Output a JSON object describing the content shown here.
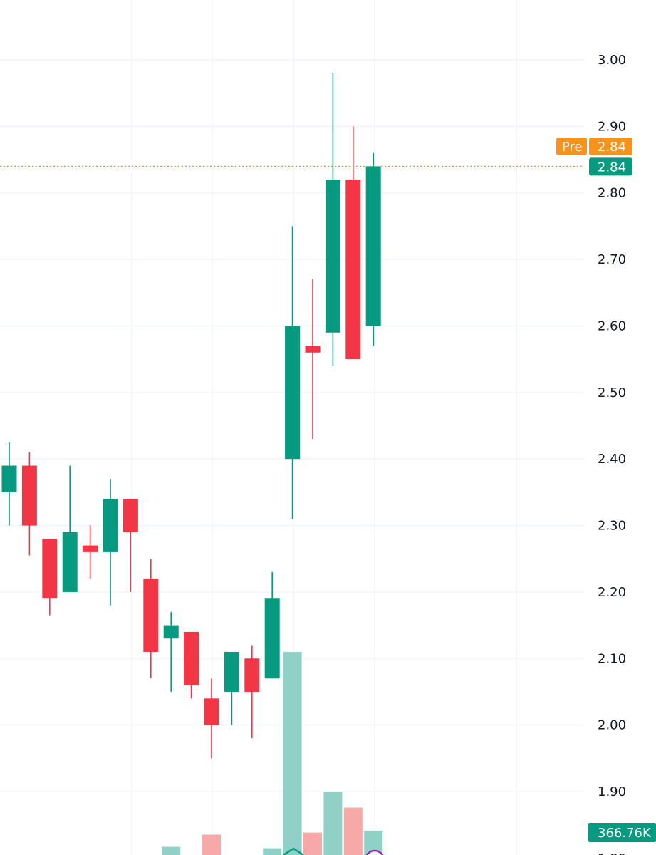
{
  "chart_data": {
    "type": "candlestick",
    "y_axis": {
      "ticks": [
        "3.00",
        "2.90",
        "2.80",
        "2.70",
        "2.60",
        "2.50",
        "2.40",
        "2.30",
        "2.20",
        "2.10",
        "2.00",
        "1.90"
      ],
      "range": [
        1.87,
        3.09
      ]
    },
    "candles": [
      {
        "open": 2.35,
        "high": 2.425,
        "low": 2.3,
        "close": 2.39
      },
      {
        "open": 2.39,
        "high": 2.41,
        "low": 2.255,
        "close": 2.3
      },
      {
        "open": 2.28,
        "high": 2.28,
        "low": 2.165,
        "close": 2.19
      },
      {
        "open": 2.2,
        "high": 2.39,
        "low": 2.2,
        "close": 2.29
      },
      {
        "open": 2.27,
        "high": 2.3,
        "low": 2.22,
        "close": 2.26
      },
      {
        "open": 2.26,
        "high": 2.37,
        "low": 2.18,
        "close": 2.34
      },
      {
        "open": 2.34,
        "high": 2.34,
        "low": 2.2,
        "close": 2.29
      },
      {
        "open": 2.22,
        "high": 2.25,
        "low": 2.07,
        "close": 2.11
      },
      {
        "open": 2.13,
        "high": 2.17,
        "low": 2.05,
        "close": 2.15
      },
      {
        "open": 2.14,
        "high": 2.14,
        "low": 2.04,
        "close": 2.06
      },
      {
        "open": 2.04,
        "high": 2.07,
        "low": 1.95,
        "close": 2.0
      },
      {
        "open": 2.05,
        "high": 2.11,
        "low": 2.0,
        "close": 2.11
      },
      {
        "open": 2.1,
        "high": 2.12,
        "low": 1.98,
        "close": 2.05
      },
      {
        "open": 2.07,
        "high": 2.23,
        "low": 2.07,
        "close": 2.19
      },
      {
        "open": 2.4,
        "high": 2.75,
        "low": 2.31,
        "close": 2.6
      },
      {
        "open": 2.57,
        "high": 2.67,
        "low": 2.43,
        "close": 2.56
      },
      {
        "open": 2.59,
        "high": 2.98,
        "low": 2.54,
        "close": 2.82
      },
      {
        "open": 2.82,
        "high": 2.9,
        "low": 2.55,
        "close": 2.55
      },
      {
        "open": 2.6,
        "high": 2.86,
        "low": 2.57,
        "close": 2.84
      }
    ],
    "volume": {
      "label": "366.76K",
      "bars": [
        {
          "index": 8,
          "value": 0.012,
          "up": true
        },
        {
          "index": 10,
          "value": 0.03,
          "up": false
        },
        {
          "index": 13,
          "value": 0.01,
          "up": true
        },
        {
          "index": 14,
          "value": 0.3,
          "up": true
        },
        {
          "index": 15,
          "value": 0.033,
          "up": false
        },
        {
          "index": 16,
          "value": 0.093,
          "up": true
        },
        {
          "index": 17,
          "value": 0.07,
          "up": false
        },
        {
          "index": 18,
          "value": 0.036,
          "up": true
        }
      ]
    },
    "last_price": {
      "value": "2.84",
      "premarket_label": "Pre",
      "premarket_value": "2.84"
    },
    "grid": true,
    "colors": {
      "up": "#089981",
      "down": "#f23645",
      "up_volume": "#8fd1c7",
      "down_volume": "#f7a9a7",
      "premarket": "#f7931a",
      "grid": "#f0f3fa",
      "axis_text": "#131722"
    }
  }
}
